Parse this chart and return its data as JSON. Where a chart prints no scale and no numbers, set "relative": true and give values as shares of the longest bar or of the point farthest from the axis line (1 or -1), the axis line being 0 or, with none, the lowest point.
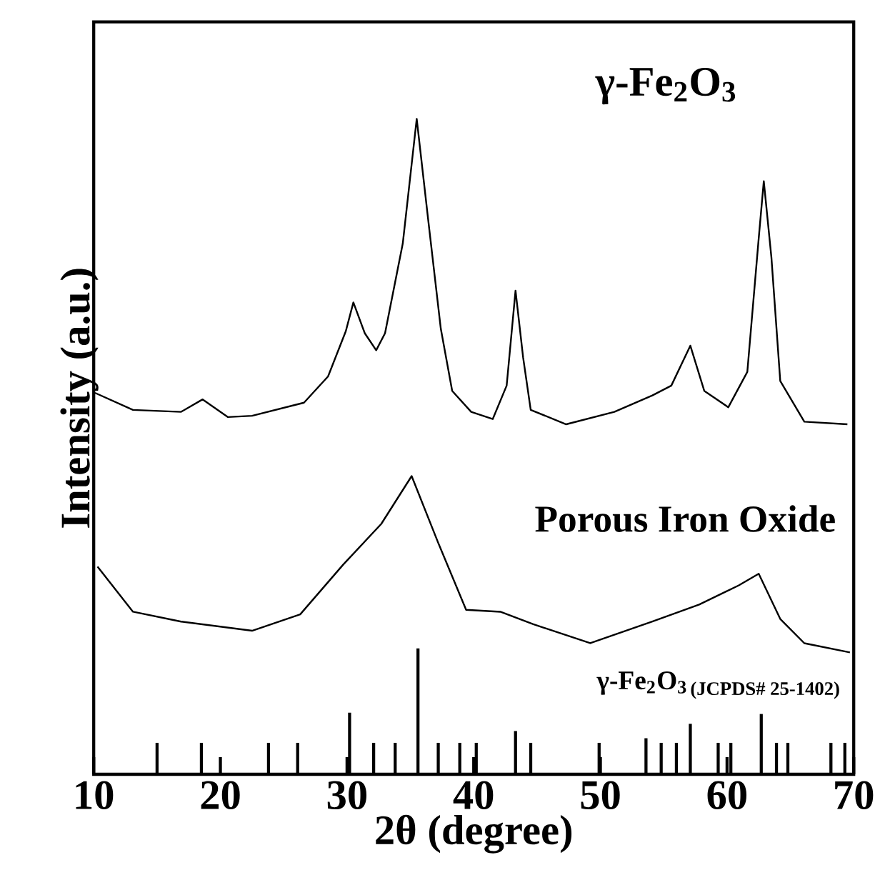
{
  "chart_data": {
    "type": "line",
    "relative": true,
    "xlabel": "2θ (degree)",
    "ylabel": "Intensity (a.u.)",
    "xlim": [
      10,
      70
    ],
    "xticks": [
      10,
      20,
      30,
      40,
      50,
      60,
      70
    ],
    "tick_labels": "x",
    "annotations": [
      "(JCPDS# 25-1402)"
    ],
    "series": [
      {
        "name": "γ-Fe$_{2}$O$_{3}$",
        "color": "#000000",
        "x": [
          10.1,
          13.1,
          16.9,
          18.6,
          20.6,
          22.5,
          26.6,
          28.5,
          29.9,
          30.5,
          31.4,
          32.3,
          33.0,
          34.4,
          35.5,
          36.4,
          37.4,
          38.3,
          39.8,
          41.5,
          42.6,
          43.3,
          43.9,
          44.5,
          47.3,
          51.1,
          54.1,
          55.6,
          57.1,
          58.2,
          60.1,
          61.6,
          62.5,
          62.9,
          63.5,
          64.2,
          66.1,
          69.5
        ],
        "values": [
          0.582,
          0.556,
          0.553,
          0.572,
          0.545,
          0.547,
          0.567,
          0.607,
          0.676,
          0.72,
          0.673,
          0.647,
          0.673,
          0.81,
          1,
          0.847,
          0.68,
          0.585,
          0.553,
          0.542,
          0.593,
          0.738,
          0.636,
          0.556,
          0.534,
          0.553,
          0.578,
          0.593,
          0.654,
          0.585,
          0.56,
          0.614,
          0.818,
          0.905,
          0.789,
          0.6,
          0.538,
          0.534
        ]
      },
      {
        "name": "Porous Iron Oxide",
        "color": "#000000",
        "x": [
          10.3,
          13.1,
          16.9,
          22.5,
          26.3,
          29.7,
          32.7,
          35.1,
          37.2,
          39.4,
          42.1,
          44.7,
          49.2,
          54.1,
          57.8,
          60.9,
          62.5,
          64.2,
          66.1,
          69.7
        ],
        "values": [
          0.317,
          0.248,
          0.233,
          0.219,
          0.244,
          0.32,
          0.382,
          0.455,
          0.353,
          0.251,
          0.248,
          0.229,
          0.2,
          0.233,
          0.259,
          0.288,
          0.306,
          0.237,
          0.2,
          0.186
        ]
      },
      {
        "name": "γ-Fe$_{2}$O$_{3}$",
        "type": "bar",
        "color": "#000000",
        "x": [
          15.0,
          18.5,
          23.8,
          26.1,
          30.2,
          32.1,
          33.8,
          35.6,
          37.2,
          38.9,
          40.2,
          43.3,
          44.5,
          49.9,
          53.6,
          54.8,
          56.0,
          57.1,
          59.3,
          60.3,
          62.7,
          63.9,
          64.8,
          68.2,
          69.3
        ],
        "values": [
          0.048,
          0.048,
          0.048,
          0.048,
          0.094,
          0.048,
          0.048,
          0.192,
          0.048,
          0.048,
          0.048,
          0.066,
          0.048,
          0.048,
          0.055,
          0.048,
          0.048,
          0.077,
          0.048,
          0.048,
          0.092,
          0.048,
          0.048,
          0.048,
          0.048
        ]
      }
    ]
  }
}
